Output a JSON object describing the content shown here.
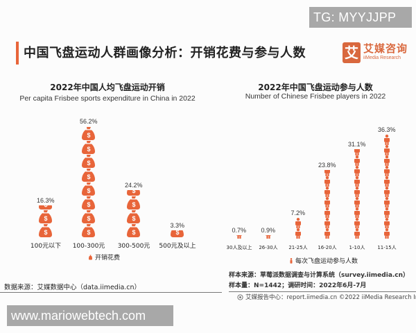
{
  "watermarks": {
    "top": "TG: MYYJJPP",
    "bottom": "www.mariowebtech.com"
  },
  "header": {
    "title": "中国飞盘运动人群画像分析：开销花费与参与人数",
    "accent_color": "#e8653a",
    "logo": {
      "mark": "艾",
      "cn": "艾媒咨询",
      "en": "iiMedia Research"
    }
  },
  "chart_data": [
    {
      "type": "bar",
      "pictogram": "money-bag",
      "title": "2022年中国人均飞盘运动开销",
      "subtitle": "Per capita Frisbee sports expenditure in China in 2022",
      "categories": [
        "100元以下",
        "100-300元",
        "300-500元",
        "500元及以上"
      ],
      "values": [
        16.3,
        56.2,
        24.2,
        3.3
      ],
      "value_labels": [
        "16.3%",
        "56.2%",
        "24.2%",
        "3.3%"
      ],
      "icon_counts": [
        2.3,
        8,
        3.4,
        0.5
      ],
      "legend": [
        "开销花费"
      ],
      "unit": "%",
      "color": "#e8653a",
      "grid": false
    },
    {
      "type": "bar",
      "pictogram": "person",
      "title": "2022年中国飞盘运动参与人数",
      "subtitle": "Number of Chinese Frisbee players in 2022",
      "categories": [
        "30人及以上",
        "26-30人",
        "21-25人",
        "16-20人",
        "1-10人",
        "11-15人"
      ],
      "values": [
        0.7,
        0.9,
        7.2,
        23.8,
        31.1,
        36.3
      ],
      "value_labels": [
        "0.7%",
        "0.9%",
        "7.2%",
        "23.8%",
        "31.1%",
        "36.3%"
      ],
      "icon_counts": [
        0.2,
        0.2,
        2,
        6.6,
        8.6,
        10
      ],
      "legend": [
        "每次飞盘运动参与人数"
      ],
      "unit": "%",
      "color": "#e8653a",
      "grid": false
    }
  ],
  "footer": {
    "left_source": "数据来源：艾媒数据中心（data.iimedia.cn）",
    "right_source_1": "样本来源：草莓派数据调查与计算系统（survey.iimedia.cn）",
    "right_source_2": "样本量：N=1442；调研时间：2022年6月-7月",
    "copyright": "艾媒报告中心：report.iimedia.cn   ©2022  iiMedia Research  Inc"
  }
}
